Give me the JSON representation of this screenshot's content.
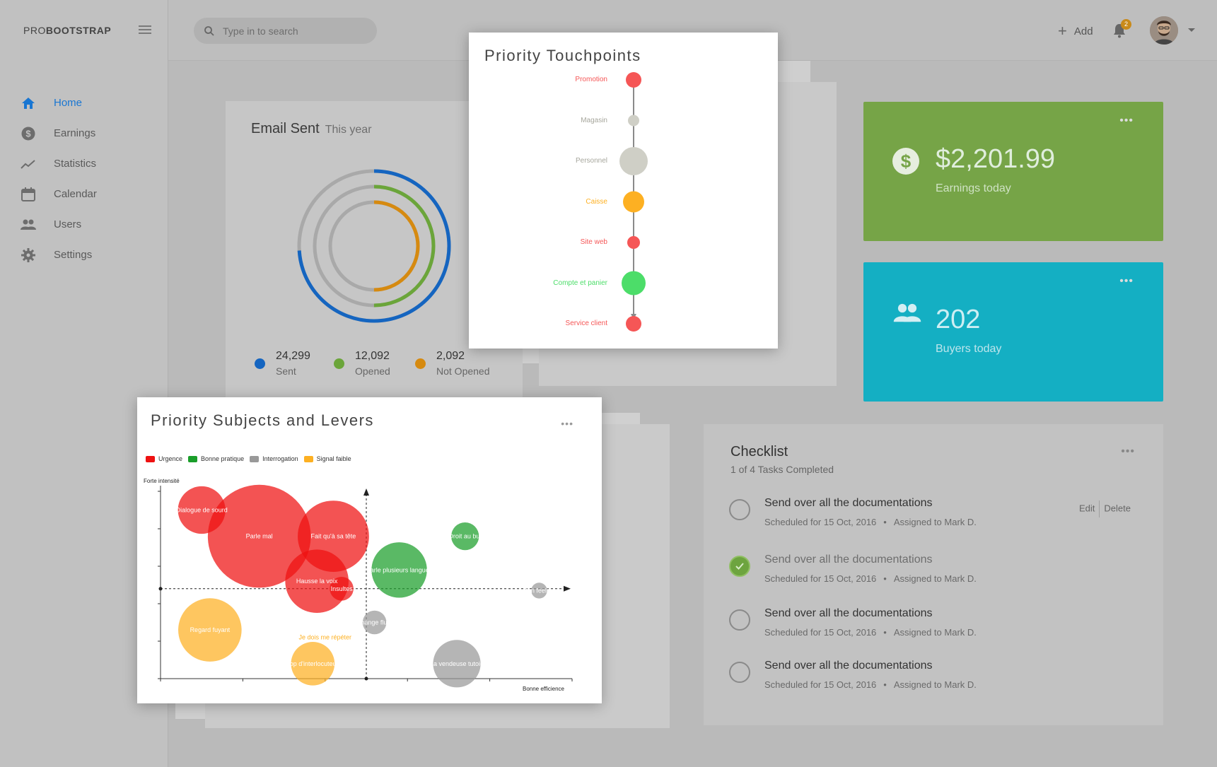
{
  "brand": {
    "light": "PRO",
    "bold": "BOOTSTRAP"
  },
  "sidebar": {
    "items": [
      {
        "label": "Home",
        "icon": "home-icon",
        "active": true
      },
      {
        "label": "Earnings",
        "icon": "dollar-icon"
      },
      {
        "label": "Statistics",
        "icon": "trending-icon"
      },
      {
        "label": "Calendar",
        "icon": "calendar-icon"
      },
      {
        "label": "Users",
        "icon": "users-icon"
      },
      {
        "label": "Settings",
        "icon": "gear-icon"
      }
    ]
  },
  "header": {
    "search_placeholder": "Type in to search",
    "add_label": "Add",
    "notification_count": "2"
  },
  "email": {
    "title": "Email Sent",
    "subtitle": "This year",
    "stats": [
      {
        "value": "24,299",
        "label": "Sent",
        "color": "#1565c0"
      },
      {
        "value": "12,092",
        "label": "Opened",
        "color": "#6ba53a"
      },
      {
        "value": "2,092",
        "label": "Not Opened",
        "color": "#d68a10"
      }
    ]
  },
  "earnings": {
    "amount": "$2,201.99",
    "label": "Earnings today"
  },
  "buyers": {
    "amount": "202",
    "label": "Buyers today"
  },
  "checklist": {
    "title": "Checklist",
    "subtitle": "1 of 4 Tasks Completed",
    "tasks": [
      {
        "title": "Send over all the documentations",
        "scheduled": "Scheduled for 15 Oct, 2016",
        "assigned": "Assigned to Mark D.",
        "done": false,
        "edit": "Edit",
        "delete": "Delete"
      },
      {
        "title": "Send over all the documentations",
        "scheduled": "Scheduled for 15 Oct, 2016",
        "assigned": "Assigned to Mark D.",
        "done": true
      },
      {
        "title": "Send over all the documentations",
        "scheduled": "Scheduled for 15 Oct, 2016",
        "assigned": "Assigned to Mark D.",
        "done": false
      },
      {
        "title": "Send over all the documentations",
        "scheduled": "Scheduled for 15 Oct, 2016",
        "assigned": "Assigned to Mark D.",
        "done": false
      }
    ]
  },
  "touchpoints": {
    "title": "Priority Touchpoints",
    "items": [
      {
        "label": "Promotion",
        "color": "#f55656",
        "size": 11
      },
      {
        "label": "Magasin",
        "color": "#cfcfc6",
        "size": 8
      },
      {
        "label": "Personnel",
        "color": "#cfcfc6",
        "size": 20
      },
      {
        "label": "Caisse",
        "color": "#fdb022",
        "size": 15
      },
      {
        "label": "Site web",
        "color": "#f55656",
        "size": 9
      },
      {
        "label": "Compte et panier",
        "color": "#4cdd69",
        "size": 17
      },
      {
        "label": "Service client",
        "color": "#f55656",
        "size": 11
      }
    ]
  },
  "subjects": {
    "title": "Priority Subjects and Levers",
    "legend": [
      {
        "label": "Urgence",
        "color": "#ee1111"
      },
      {
        "label": "Bonne pratique",
        "color": "#1a9e2a"
      },
      {
        "label": "Interrogation",
        "color": "#999999"
      },
      {
        "label": "Signal faible",
        "color": "#fdb022"
      }
    ],
    "ylabel": "Forte intensité",
    "xlabel": "Bonne efficience"
  },
  "chart_data": [
    {
      "type": "donut",
      "title": "Email Sent",
      "subtitle": "This year",
      "series": [
        {
          "name": "Sent",
          "value": 24299,
          "color": "#1565c0"
        },
        {
          "name": "Opened",
          "value": 12092,
          "color": "#6ba53a"
        },
        {
          "name": "Not Opened",
          "value": 2092,
          "color": "#d68a10"
        }
      ]
    },
    {
      "type": "scatter",
      "title": "Priority Touchpoints",
      "points": [
        {
          "label": "Promotion",
          "value": 11,
          "group": "red"
        },
        {
          "label": "Magasin",
          "value": 8,
          "group": "grey"
        },
        {
          "label": "Personnel",
          "value": 20,
          "group": "grey"
        },
        {
          "label": "Caisse",
          "value": 15,
          "group": "orange"
        },
        {
          "label": "Site web",
          "value": 9,
          "group": "red"
        },
        {
          "label": "Compte et panier",
          "value": 17,
          "group": "green"
        },
        {
          "label": "Service client",
          "value": 11,
          "group": "red"
        }
      ]
    },
    {
      "type": "scatter",
      "title": "Priority Subjects and Levers",
      "xlabel": "Bonne efficience",
      "ylabel": "Forte intensité",
      "xlim": [
        0,
        100
      ],
      "ylim": [
        0,
        100
      ],
      "points": [
        {
          "label": "Dialogue de sourd",
          "x": 10,
          "y": 90,
          "r": 6,
          "series": "Urgence"
        },
        {
          "label": "Parle mal",
          "x": 24,
          "y": 76,
          "r": 13,
          "series": "Urgence"
        },
        {
          "label": "Fait qu'à sa tête",
          "x": 42,
          "y": 76,
          "r": 9,
          "series": "Urgence"
        },
        {
          "label": "Hausse la voix",
          "x": 38,
          "y": 52,
          "r": 8,
          "series": "Urgence"
        },
        {
          "label": "Insultes",
          "x": 44,
          "y": 48,
          "r": 3,
          "series": "Urgence"
        },
        {
          "label": "Droit au but",
          "x": 74,
          "y": 76,
          "r": 3.5,
          "series": "Bonne pratique"
        },
        {
          "label": "Parle plusieurs langues",
          "x": 58,
          "y": 58,
          "r": 7,
          "series": "Bonne pratique"
        },
        {
          "label": "Bon feeling",
          "x": 92,
          "y": 47,
          "r": 2,
          "series": "Interrogation"
        },
        {
          "label": "Echange fluide",
          "x": 52,
          "y": 30,
          "r": 3,
          "series": "Interrogation"
        },
        {
          "label": "La vendeuse tutoie",
          "x": 72,
          "y": 8,
          "r": 6,
          "series": "Interrogation"
        },
        {
          "label": "Regard fuyant",
          "x": 12,
          "y": 26,
          "r": 8,
          "series": "Signal faible"
        },
        {
          "label": "Je dois me répéter",
          "x": 40,
          "y": 22,
          "r": 0,
          "series": "Signal faible"
        },
        {
          "label": "Trop d'interlocuteurs",
          "x": 37,
          "y": 8,
          "r": 5.5,
          "series": "Signal faible"
        }
      ]
    }
  ]
}
